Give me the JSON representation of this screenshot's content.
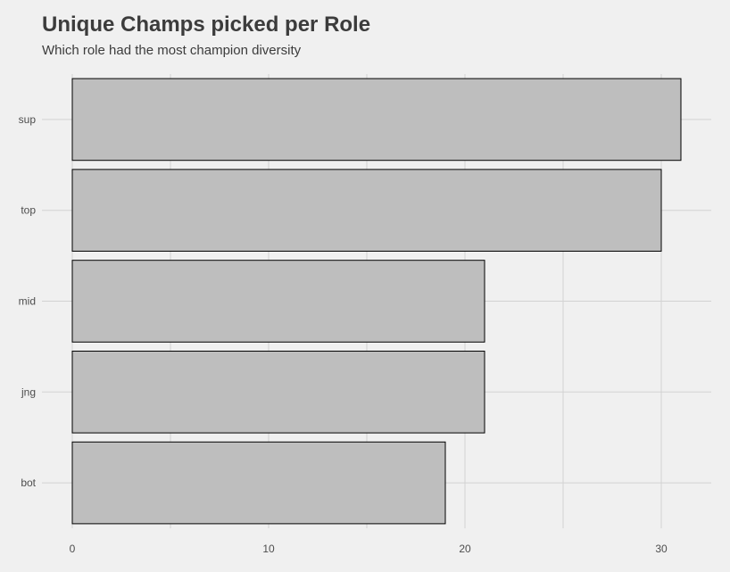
{
  "chart_data": {
    "type": "bar",
    "orientation": "horizontal",
    "title": "Unique Champs picked per Role",
    "subtitle": "Which role had the most champion diversity",
    "xlabel": "",
    "ylabel": "",
    "categories": [
      "sup",
      "top",
      "mid",
      "jng",
      "bot"
    ],
    "values": [
      31,
      30,
      21,
      21,
      19
    ],
    "xlim": [
      0,
      32.7
    ],
    "xticks": [
      0,
      10,
      20,
      30
    ],
    "grid": true,
    "legend": "none",
    "colors": {
      "background": "#f0f0f0",
      "bar_fill": "#bebebe",
      "bar_stroke": "#000000",
      "grid": "#d2d2d2",
      "text": "#3c3c3c"
    }
  }
}
